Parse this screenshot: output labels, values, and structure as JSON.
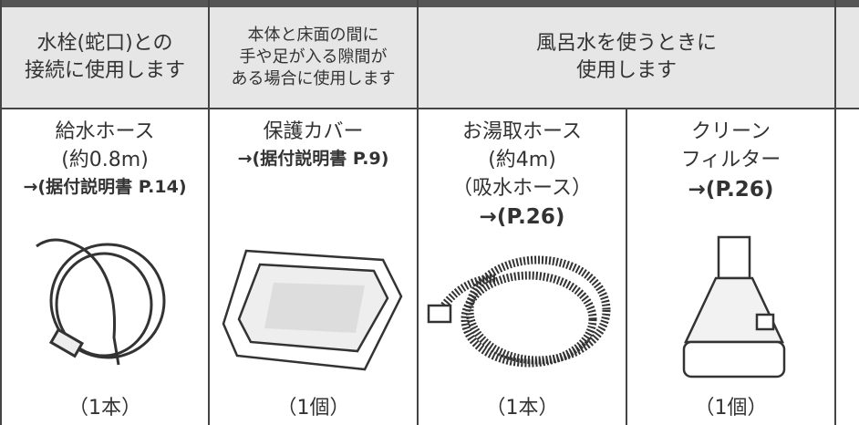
{
  "header": {
    "cells": [
      {
        "lines": [
          "水栓(蛇口)との",
          "接続に使用します"
        ]
      },
      {
        "lines": [
          "本体と床面の間に",
          "手や足が入る隙間が",
          "ある場合に使用します"
        ]
      },
      {
        "lines": [
          "風呂水を使うときに",
          "使用します"
        ]
      }
    ]
  },
  "items": [
    {
      "lines": [
        "給水ホース",
        "(約0.8m)"
      ],
      "reference": "→(据付説明書 P.14)",
      "count": "（1本）"
    },
    {
      "lines": [
        "保護カバー"
      ],
      "reference": "→(据付説明書 P.9)",
      "count": "（1個）"
    },
    {
      "lines": [
        "お湯取ホース",
        "(約4m)",
        "（吸水ホース）"
      ],
      "reference": "→(P.26)",
      "count": "（1本）"
    },
    {
      "lines": [
        "クリーン",
        "フィルター"
      ],
      "reference": "→(P.26)",
      "count": "（1個）"
    }
  ]
}
